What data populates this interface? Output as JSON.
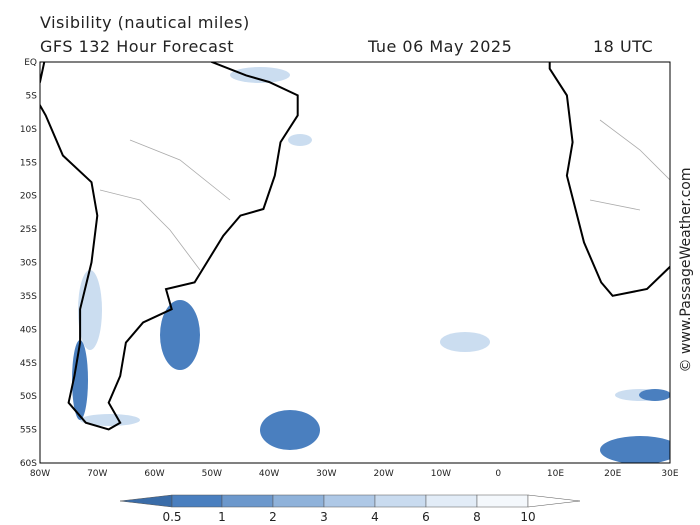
{
  "header": {
    "title": "Visibility (nautical miles)",
    "subtitle": "GFS 132 Hour Forecast",
    "date": "Tue 06 May 2025",
    "time": "18 UTC"
  },
  "map": {
    "lat_labels": [
      "EQ",
      "5S",
      "10S",
      "15S",
      "20S",
      "25S",
      "30S",
      "35S",
      "40S",
      "45S",
      "50S",
      "55S",
      "60S"
    ],
    "lon_labels": [
      "80W",
      "70W",
      "60W",
      "50W",
      "40W",
      "30W",
      "20W",
      "10W",
      "0",
      "10E",
      "20E",
      "30E"
    ]
  },
  "colorbar": {
    "labels": [
      "0.5",
      "1",
      "2",
      "3",
      "4",
      "6",
      "8",
      "10"
    ]
  },
  "watermark": "© www.PassageWeather.com"
}
